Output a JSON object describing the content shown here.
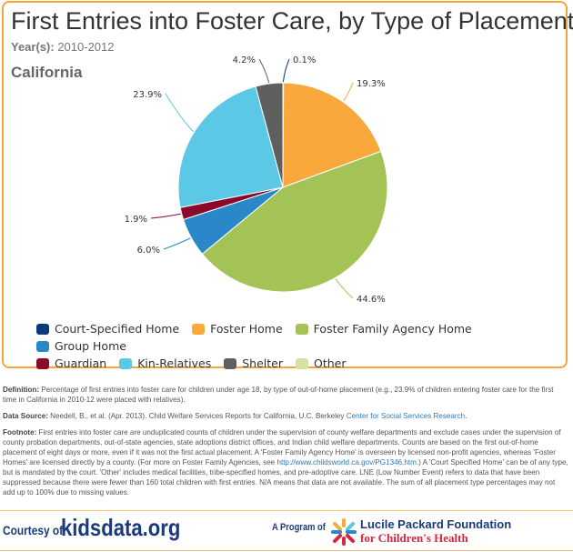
{
  "header": {
    "title": "First Entries into Foster Care, by Type of Placement",
    "years_label": "Year(s):",
    "years_value": "2010-2012",
    "region": "California"
  },
  "chart_data": {
    "type": "pie",
    "title": "First Entries into Foster Care, by Type of Placement",
    "categories": [
      "Court-Specified Home",
      "Foster Home",
      "Foster Family Agency Home",
      "Group Home",
      "Guardian",
      "Kin-Relatives",
      "Shelter",
      "Other"
    ],
    "values": [
      0.1,
      19.3,
      44.6,
      6.0,
      1.9,
      23.9,
      4.2,
      null
    ],
    "labels": [
      "0.1%",
      "19.3%",
      "44.6%",
      "6.0%",
      "1.9%",
      "23.9%",
      "4.2%",
      ""
    ],
    "colors": [
      "#0d3b7a",
      "#f9a93c",
      "#a3c356",
      "#2b88c8",
      "#8b0a2a",
      "#5bc8e6",
      "#5f5f5f",
      "#d4e4a4"
    ],
    "legend_position": "bottom"
  },
  "notes": {
    "definition_label": "Definition:",
    "definition": " Percentage of first entries into foster care for children under age 18, by type of out-of-home placement (e.g., 23.9% of children entering foster care for the first time in California in 2010-12 were placed with relatives).",
    "source_label": "Data Source:",
    "source": " Needell, B., et al. (Apr. 2013). Child Welfare Services Reports for California, U.C. Berkeley ",
    "source_link": "Center for Social Services Research",
    "source_end": ".",
    "footnote_label": "Footnote:",
    "footnote_a": " First entries into foster care are unduplicated counts of children under the supervision of county welfare departments and exclude cases under the supervision of county probation departments, out-of-state agencies, state adoptions district offices, and Indian child welfare departments. Counts are based on the first out-of-home placement of eight days or more, even if it was not the first actual placement. A 'Foster Family Agency Home' is overseen by licensed non-profit agencies, whereas 'Foster Homes' are licensed directly by a county. (For more on Foster Family Agencies, see ",
    "footnote_link": "http://www.childsworld.ca.gov/PG1346.htm",
    "footnote_b": ".) A 'Court Specified Home' can be of any type, but is mandated by the court. 'Other' includes medical facilities, tribe-specified homes, and pre-adoptive care. LNE (Low Number Event) refers to data that have been suppressed because there were fewer than 160 total children with first entries. N/A means that data are not available. The sum of all placement type percentages may not add up to 100% due to missing values."
  },
  "footer": {
    "courtesy": "Courtesy of",
    "brand": "kidsdata.org",
    "program": "A Program of",
    "foundation_line1": "Lucile Packard Foundation",
    "foundation_line2": "for Children's Health"
  }
}
